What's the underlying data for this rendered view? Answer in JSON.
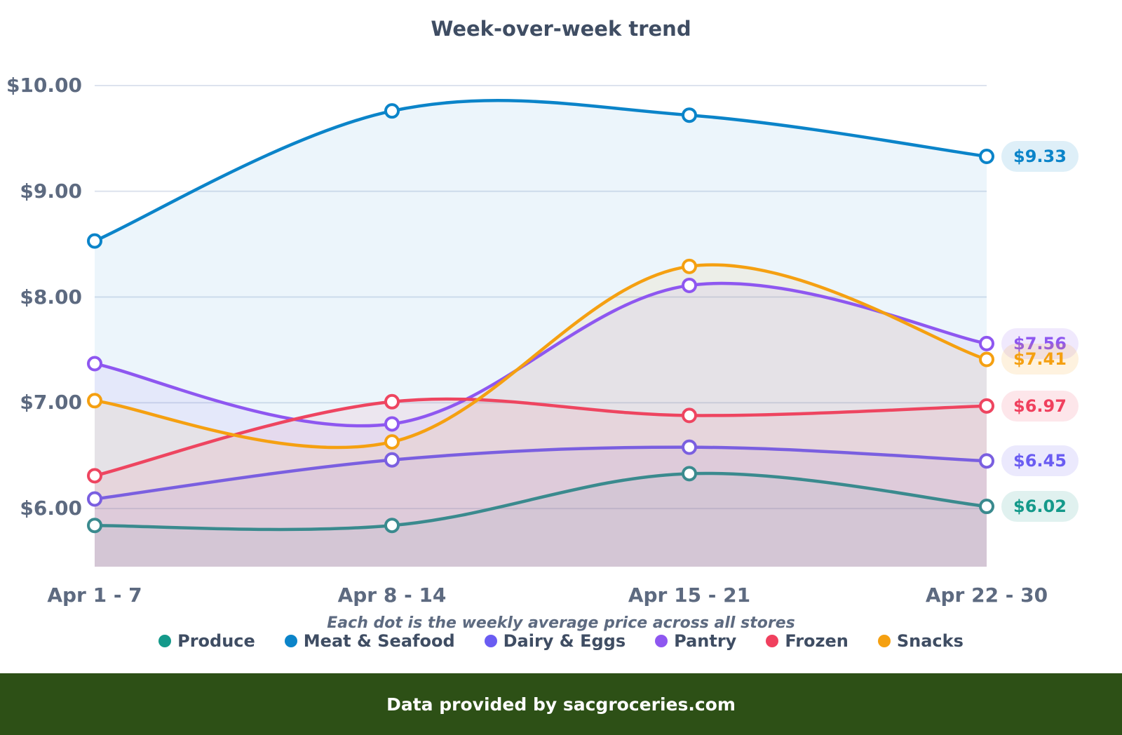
{
  "chart_data": {
    "type": "line",
    "title": "Week-over-week trend",
    "categories": [
      "Apr 1 - 7",
      "Apr 8 - 14",
      "Apr 15 - 21",
      "Apr 22 - 30"
    ],
    "ylim": [
      5.45,
      10.0
    ],
    "yticks": [
      6,
      7,
      8,
      9,
      10
    ],
    "ytick_labels": [
      "$6.00",
      "$7.00",
      "$8.00",
      "$9.00",
      "$10.00"
    ],
    "grid": true,
    "legend_position": "bottom",
    "note": "Each dot is the weekly average price across all stores",
    "series": [
      {
        "name": "Produce",
        "color": "#14998a",
        "line_color": "#3a8a8e",
        "values": [
          5.84,
          5.84,
          6.33,
          6.02
        ],
        "end_label": "$6.02"
      },
      {
        "name": "Meat & Seafood",
        "color": "#0b84c9",
        "line_color": "#0b84c9",
        "values": [
          8.53,
          9.76,
          9.72,
          9.33
        ],
        "end_label": "$9.33"
      },
      {
        "name": "Dairy & Eggs",
        "color": "#6a5cf2",
        "line_color": "#7a5fe0",
        "values": [
          6.09,
          6.46,
          6.58,
          6.45
        ],
        "end_label": "$6.45"
      },
      {
        "name": "Pantry",
        "color": "#8e57f0",
        "line_color": "#8e57f0",
        "values": [
          7.37,
          6.8,
          8.11,
          7.56
        ],
        "end_label": "$7.56"
      },
      {
        "name": "Frozen",
        "color": "#f0405e",
        "line_color": "#ee4560",
        "values": [
          6.31,
          7.01,
          6.88,
          6.97
        ],
        "end_label": "$6.97"
      },
      {
        "name": "Snacks",
        "color": "#f5a011",
        "line_color": "#f5a011",
        "values": [
          7.02,
          6.63,
          8.29,
          7.41
        ],
        "end_label": "$7.41"
      }
    ]
  },
  "footer": {
    "text": "Data provided by sacgroceries.com"
  }
}
